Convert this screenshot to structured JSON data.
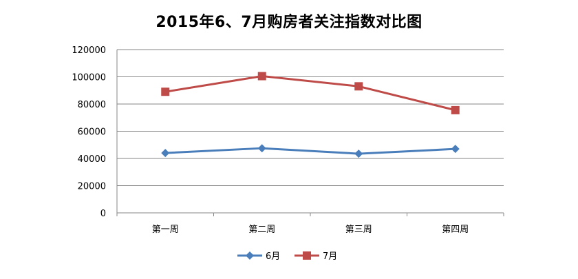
{
  "chart_data": {
    "type": "line",
    "title": "2015年6、7月购房者关注指数对比图",
    "categories": [
      "第一周",
      "第二周",
      "第三周",
      "第四周"
    ],
    "series": [
      {
        "name": "6月",
        "values": [
          44000,
          47500,
          43500,
          47000
        ],
        "color": "#4a7ebb",
        "marker": "diamond"
      },
      {
        "name": "7月",
        "values": [
          89000,
          100500,
          93000,
          75500
        ],
        "color": "#be4b48",
        "marker": "square"
      }
    ],
    "ylim": [
      0,
      120000
    ],
    "yticks": [
      0,
      20000,
      40000,
      60000,
      80000,
      100000,
      120000
    ],
    "grid": true,
    "legend": "bottom",
    "xlabel": "",
    "ylabel": ""
  }
}
